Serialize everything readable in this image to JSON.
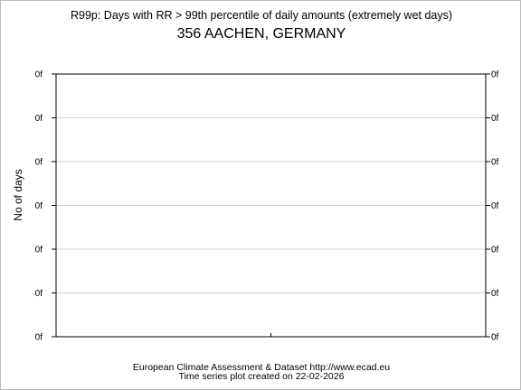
{
  "chart_data": {
    "type": "line",
    "title": "R99p: Days with RR > 99th percentile of daily amounts (extremely wet days)",
    "subtitle": "356 AACHEN, GERMANY",
    "ylabel": "No of days",
    "xlabel": "",
    "y_tick_labels": [
      "0f",
      "0f",
      "0f",
      "0f",
      "0f",
      "0f",
      "0f"
    ],
    "series": [],
    "grid": true
  },
  "footer": {
    "line1": "European Climate Assessment & Dataset  http://www.ecad.eu",
    "line2": "Time series plot created on 22-02-2026"
  }
}
